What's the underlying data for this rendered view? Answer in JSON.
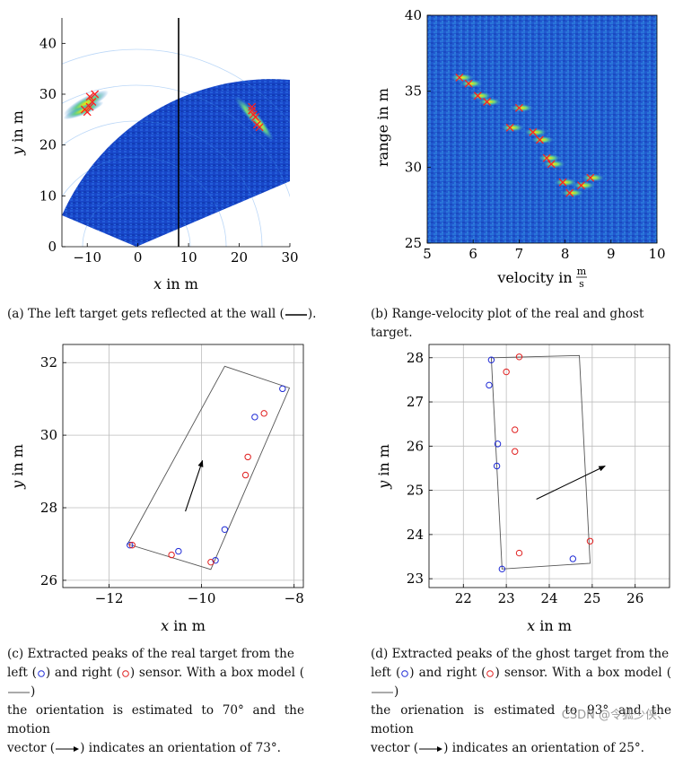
{
  "colors": {
    "map_bg": "#1846c8",
    "blue_peak": "#1f2bd6",
    "red_peak": "#e01f1f",
    "box_line": "#555555",
    "grid": "#bdbdbd",
    "marker_x": "#ff2020"
  },
  "panels": {
    "a": {
      "caption": "(a) The left target gets reflected at the wall (",
      "caption_tail": ").",
      "xlabel_var": "x",
      "xlabel_unit": " in m",
      "ylabel_var": "y",
      "ylabel_unit": " in m",
      "x_ticks": [
        "−10",
        "0",
        "10",
        "20",
        "30"
      ],
      "y_ticks": [
        "0",
        "10",
        "20",
        "30",
        "40"
      ]
    },
    "b": {
      "caption": "(b) Range-velocity plot of the real and ghost target.",
      "xlabel": "velocity in",
      "xlabel_unit_num": "m",
      "xlabel_unit_den": "s",
      "ylabel": "range in m",
      "x_ticks": [
        "5",
        "6",
        "7",
        "8",
        "9",
        "10"
      ],
      "y_ticks": [
        "25",
        "30",
        "35",
        "40"
      ]
    },
    "c": {
      "caption_l1": "(c) Extracted peaks of the real target from the",
      "caption_l2a": "left (",
      "caption_l2b": ") and right (",
      "caption_l2c": ") sensor. With a box model (",
      "caption_l2d": ")",
      "caption_l3": "the orientation is estimated to 70° and the motion",
      "caption_l4a": "vector (",
      "caption_l4b": ") indicates an orientation of 73°.",
      "xlabel_var": "x",
      "xlabel_unit": " in m",
      "ylabel_var": "y",
      "ylabel_unit": " in m",
      "x_ticks": [
        "−12",
        "−10",
        "−8"
      ],
      "y_ticks": [
        "26",
        "28",
        "30",
        "32"
      ]
    },
    "d": {
      "caption_l1": "(d) Extracted peaks of the ghost target from the",
      "caption_l2a": "left (",
      "caption_l2b": ") and right (",
      "caption_l2c": ") sensor. With a box model (",
      "caption_l2d": ")",
      "caption_l3": "the orienation is estimated to 93° and the motion",
      "caption_l4a": "vector (",
      "caption_l4b": ") indicates an orientation of 25°.",
      "xlabel_var": "x",
      "xlabel_unit": " in m",
      "ylabel_var": "y",
      "ylabel_unit": " in m",
      "x_ticks": [
        "22",
        "23",
        "24",
        "25",
        "26"
      ],
      "y_ticks": [
        "23",
        "24",
        "25",
        "26",
        "27",
        "28"
      ]
    }
  },
  "watermark": "CSDN @令狐少侠、",
  "chart_data": [
    {
      "panel": "a",
      "type": "heatmap",
      "xlabel": "x in m",
      "ylabel": "y in m",
      "xlim": [
        -15,
        30
      ],
      "ylim": [
        0,
        45
      ],
      "sensor_origin": [
        0,
        0
      ],
      "field_of_view_deg": [
        -25,
        70
      ],
      "max_range": 45,
      "wall_x": 8,
      "markers": {
        "left_cluster": [
          [
            -10.5,
            27
          ],
          [
            -9.5,
            27.5
          ],
          [
            -9,
            28.5
          ],
          [
            -8.5,
            30
          ],
          [
            -9.5,
            29.5
          ],
          [
            -10,
            26.5
          ]
        ],
        "right_cluster": [
          [
            22.5,
            27.5
          ],
          [
            22.8,
            26
          ],
          [
            23.2,
            25.5
          ],
          [
            23.5,
            24
          ],
          [
            24,
            23.5
          ],
          [
            22.5,
            26.8
          ]
        ]
      }
    },
    {
      "panel": "b",
      "type": "heatmap",
      "xlabel": "velocity in m/s",
      "ylabel": "range in m",
      "xlim": [
        5,
        10
      ],
      "ylim": [
        25,
        40
      ],
      "markers": [
        [
          5.7,
          35.9
        ],
        [
          5.9,
          35.5
        ],
        [
          6.1,
          34.7
        ],
        [
          6.3,
          34.3
        ],
        [
          6.8,
          32.6
        ],
        [
          7.0,
          33.9
        ],
        [
          7.3,
          32.3
        ],
        [
          7.45,
          31.8
        ],
        [
          7.6,
          30.6
        ],
        [
          7.7,
          30.2
        ],
        [
          7.95,
          29.0
        ],
        [
          8.1,
          28.3
        ],
        [
          8.35,
          28.8
        ],
        [
          8.55,
          29.3
        ]
      ]
    },
    {
      "panel": "c",
      "type": "scatter",
      "xlabel": "x in m",
      "ylabel": "y in m",
      "xlim": [
        -13,
        -7.8
      ],
      "ylim": [
        25.8,
        32.5
      ],
      "series": [
        {
          "name": "left sensor",
          "color": "blue",
          "points": [
            [
              -11.55,
              26.97
            ],
            [
              -10.5,
              26.8
            ],
            [
              -9.5,
              27.4
            ],
            [
              -9.7,
              26.55
            ],
            [
              -8.25,
              31.28
            ],
            [
              -8.85,
              30.5
            ]
          ]
        },
        {
          "name": "right sensor",
          "color": "red",
          "points": [
            [
              -11.5,
              26.97
            ],
            [
              -10.65,
              26.7
            ],
            [
              -9.8,
              26.5
            ],
            [
              -8.65,
              30.6
            ],
            [
              -9.0,
              29.4
            ],
            [
              -9.05,
              28.9
            ]
          ]
        }
      ],
      "box": [
        [
          -11.6,
          27.0
        ],
        [
          -9.5,
          31.9
        ],
        [
          -8.1,
          31.3
        ],
        [
          -9.8,
          26.3
        ]
      ],
      "motion_vector": {
        "from": [
          -10.35,
          27.9
        ],
        "to": [
          -9.98,
          29.3
        ]
      }
    },
    {
      "panel": "d",
      "type": "scatter",
      "xlabel": "x in m",
      "ylabel": "y in m",
      "xlim": [
        21.2,
        26.8
      ],
      "ylim": [
        22.8,
        28.3
      ],
      "series": [
        {
          "name": "left sensor",
          "color": "blue",
          "points": [
            [
              22.65,
              27.95
            ],
            [
              22.6,
              27.38
            ],
            [
              22.8,
              26.05
            ],
            [
              22.78,
              25.55
            ],
            [
              22.9,
              23.22
            ],
            [
              24.55,
              23.45
            ]
          ]
        },
        {
          "name": "right sensor",
          "color": "red",
          "points": [
            [
              23.3,
              28.02
            ],
            [
              23.0,
              27.68
            ],
            [
              23.2,
              26.37
            ],
            [
              23.2,
              25.88
            ],
            [
              23.3,
              23.58
            ],
            [
              24.95,
              23.85
            ]
          ]
        }
      ],
      "box": [
        [
          22.65,
          28.0
        ],
        [
          24.7,
          28.05
        ],
        [
          24.95,
          23.35
        ],
        [
          22.9,
          23.22
        ]
      ],
      "motion_vector": {
        "from": [
          23.7,
          24.8
        ],
        "to": [
          25.3,
          25.55
        ]
      }
    }
  ]
}
